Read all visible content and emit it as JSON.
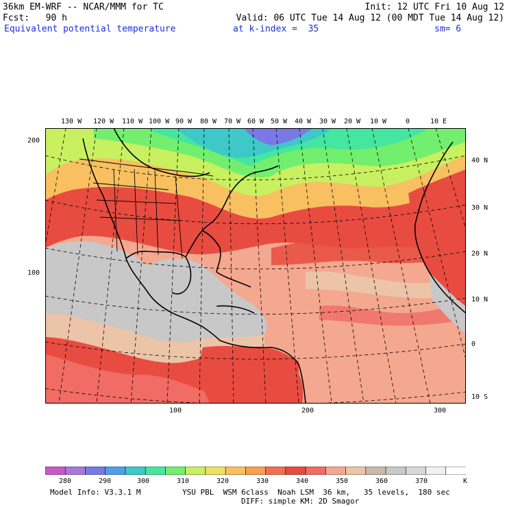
{
  "header": {
    "model_title": "36km EM-WRF -- NCAR/MMM for TC",
    "init": "Init: 12 UTC Fri 10 Aug 12",
    "forecast": "Fcst:   90 h",
    "valid": "Valid: 06 UTC Tue 14 Aug 12 (00 MDT Tue 14 Aug 12)",
    "field": "Equivalent potential temperature",
    "level": "at k-index =  35",
    "smoothing": "sm= 6"
  },
  "map": {
    "lon_labels": [
      "130 W",
      "120 W",
      "110 W",
      "100 W",
      "90 W",
      "80 W",
      "70 W",
      "60 W",
      "50 W",
      "40 W",
      "30 W",
      "20 W",
      "10 W",
      "0",
      "10 E"
    ],
    "lat_labels": [
      "40 N",
      "30 N",
      "20 N",
      "10 N",
      "0",
      "10 S"
    ],
    "grid_y_labels": [
      "200",
      "100"
    ],
    "grid_x_labels": [
      "100",
      "200",
      "300"
    ]
  },
  "colorbar": {
    "colors": [
      "#c85ac8",
      "#a878d8",
      "#7878e6",
      "#4f9ee8",
      "#3ec8c8",
      "#44e6a0",
      "#72ef6e",
      "#c8f060",
      "#f0e060",
      "#f8c060",
      "#f8a050",
      "#f07050",
      "#e84c40",
      "#f06c64",
      "#f4a890",
      "#ecc4a8",
      "#cab8aa",
      "#c8c8c8",
      "#d8d8d8",
      "#f0f0f0",
      "#ffffff"
    ],
    "labels": [
      "280",
      "290",
      "300",
      "310",
      "320",
      "330",
      "340",
      "350",
      "360",
      "370"
    ],
    "unit": "K"
  },
  "footer": {
    "line1_left": "Model Info: V3.3.1 M",
    "line1_right": "YSU PBL  WSM 6class  Noah LSM  36 km,   35 levels,  180 sec",
    "line2": "DIFF: simple KM: 2D Smagor"
  }
}
